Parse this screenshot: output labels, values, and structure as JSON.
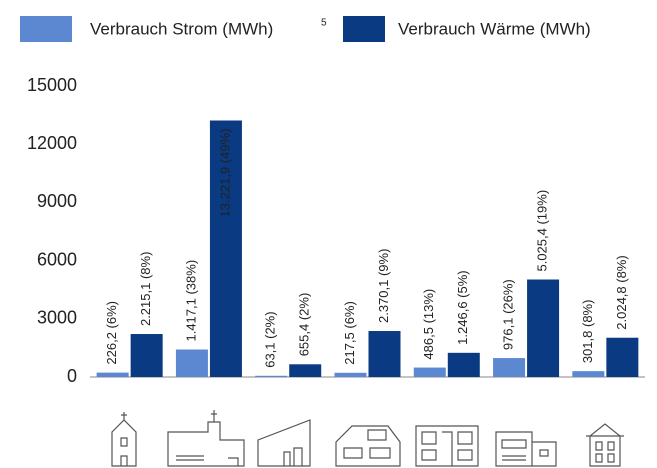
{
  "chart_data": {
    "type": "bar",
    "categories": [
      null,
      null,
      null,
      null,
      null,
      null,
      null
    ],
    "series": [
      {
        "name": "Verbrauch Strom (MWh)",
        "footnote": "5",
        "color": "#5b88d1",
        "values": [
          226.2,
          1417.1,
          63.1,
          217.5,
          486.5,
          976.1,
          301.8
        ],
        "value_labels": [
          "226,2 (6%)",
          "1.417,1 (38%)",
          "63,1 (2%)",
          "217,5 (6%)",
          "486,5 (13%)",
          "976,1 (26%)",
          "301,8 (8%)"
        ]
      },
      {
        "name": "Verbrauch Wärme (MWh)",
        "color": "#0a3a82",
        "values": [
          2215.1,
          13221.9,
          655.4,
          2370.1,
          1246.6,
          5025.4,
          2024.8
        ],
        "value_labels": [
          "2.215,1 (8%)",
          "13.221,9 (49%)",
          "655,4 (2%)",
          "2.370,1 (9%)",
          "1.246,6 (5%)",
          "5.025,4 (19%)",
          "2.024,8 (8%)"
        ]
      }
    ],
    "ylim": [
      0,
      15000
    ],
    "yticks": [
      0,
      3000,
      6000,
      9000,
      12000,
      15000
    ],
    "grid": false
  }
}
